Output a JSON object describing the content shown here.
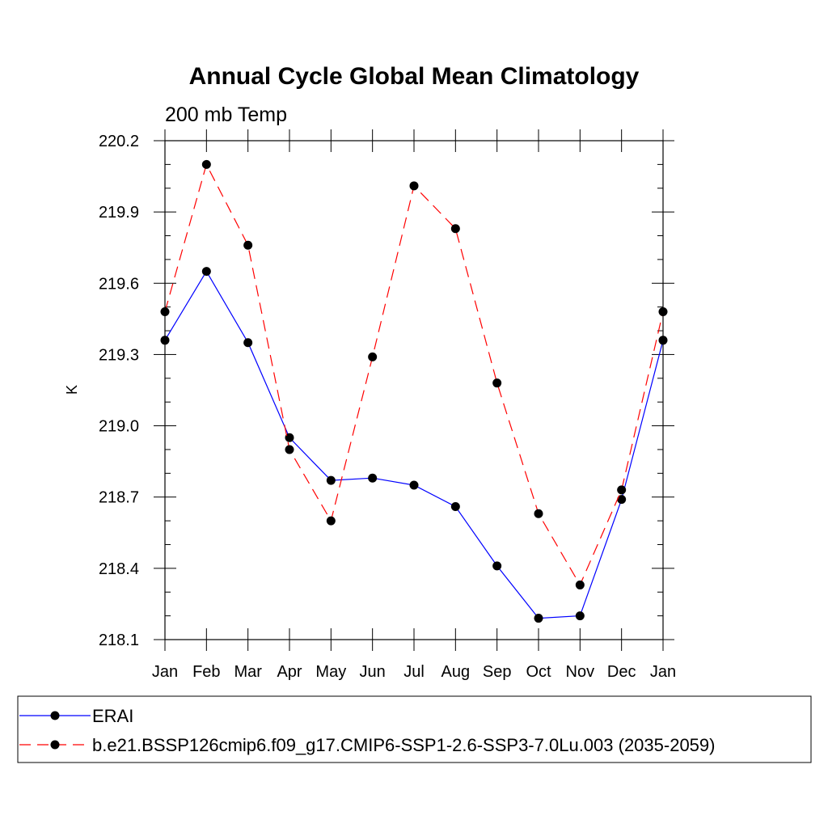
{
  "chart_data": {
    "type": "line",
    "title": "Annual Cycle Global Mean Climatology",
    "subtitle": "200 mb Temp",
    "ylabel": "K",
    "xlabel": "",
    "categories": [
      "Jan",
      "Feb",
      "Mar",
      "Apr",
      "May",
      "Jun",
      "Jul",
      "Aug",
      "Sep",
      "Oct",
      "Nov",
      "Dec",
      "Jan"
    ],
    "ylim": [
      218.1,
      220.2
    ],
    "yticks": [
      218.1,
      218.4,
      218.7,
      219.0,
      219.3,
      219.6,
      219.9,
      220.2
    ],
    "ytick_labels": [
      "218.1",
      "218.4",
      "218.7",
      "219.0",
      "219.3",
      "219.6",
      "219.9",
      "220.2"
    ],
    "legend_position": "bottom",
    "series": [
      {
        "name": "ERAI",
        "color": "#0000ff",
        "line_style": "solid",
        "marker": "filled-circle",
        "values": [
          219.36,
          219.65,
          219.35,
          218.95,
          218.77,
          218.78,
          218.75,
          218.66,
          218.41,
          218.19,
          218.2,
          218.69,
          219.36
        ]
      },
      {
        "name": "b.e21.BSSP126cmip6.f09_g17.CMIP6-SSP1-2.6-SSP3-7.0Lu.003 (2035-2059)",
        "color": "#ff0000",
        "line_style": "dashed",
        "marker": "filled-circle",
        "values": [
          219.48,
          220.1,
          219.76,
          218.9,
          218.6,
          219.29,
          220.01,
          219.83,
          219.18,
          218.63,
          218.33,
          218.73,
          219.48
        ]
      }
    ]
  }
}
